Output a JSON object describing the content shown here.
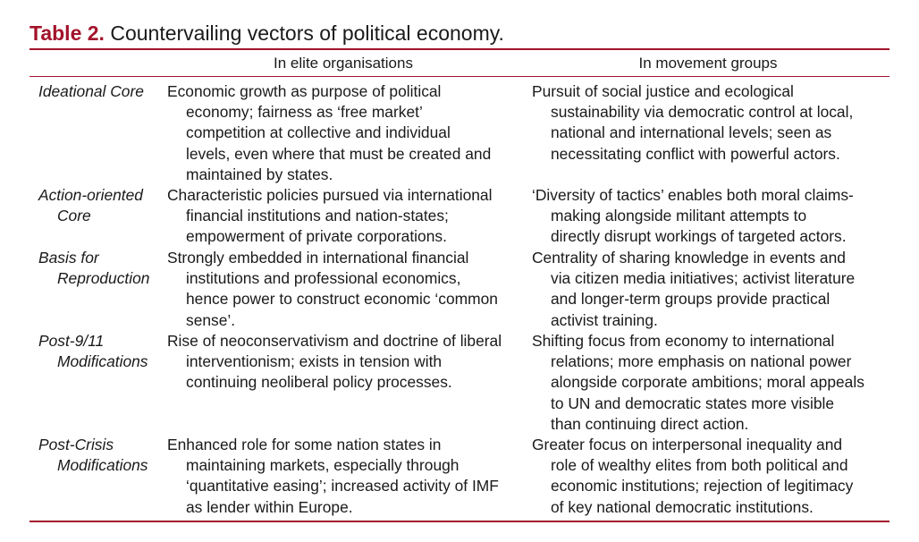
{
  "caption": {
    "label": "Table 2.",
    "title": "Countervailing vectors of political economy."
  },
  "columns": [
    "In elite organisations",
    "In movement groups"
  ],
  "rows": [
    {
      "label": [
        "Ideational Core"
      ],
      "elite": [
        "Economic growth as purpose of political",
        "economy; fairness as ‘free market’",
        "competition at collective and individual",
        "levels, even where that must be created and",
        "maintained by states."
      ],
      "movement": [
        "Pursuit of social justice and ecological",
        "sustainability via democratic control at local,",
        "national and international levels; seen as",
        "necessitating conflict with powerful actors."
      ]
    },
    {
      "label": [
        "Action-oriented",
        "Core"
      ],
      "elite": [
        "Characteristic policies pursued via international",
        "financial institutions and nation-states;",
        "empowerment of private corporations."
      ],
      "movement": [
        "‘Diversity of tactics’ enables both moral claims-",
        "making alongside militant attempts to",
        "directly disrupt workings of targeted actors."
      ]
    },
    {
      "label": [
        "Basis for",
        "Reproduction"
      ],
      "elite": [
        "Strongly embedded in international financial",
        "institutions and professional economics,",
        "hence power to construct economic ‘common",
        "sense’."
      ],
      "movement": [
        "Centrality of sharing knowledge in events and",
        "via citizen media initiatives; activist literature",
        "and longer-term groups provide practical",
        "activist training."
      ]
    },
    {
      "label": [
        "Post-9/11",
        "Modifications"
      ],
      "elite": [
        "Rise of neoconservativism and doctrine of liberal",
        "interventionism; exists in tension with",
        "continuing neoliberal policy processes."
      ],
      "movement": [
        "Shifting focus from economy to international",
        "relations; more emphasis on national power",
        "alongside corporate ambitions; moral appeals",
        "to UN and democratic states more visible",
        "than continuing direct action."
      ]
    },
    {
      "label": [
        "Post-Crisis",
        "Modifications"
      ],
      "elite": [
        "Enhanced role for some nation states in",
        "maintaining markets, especially through",
        "‘quantitative easing’; increased activity of IMF",
        "as lender within Europe."
      ],
      "movement": [
        "Greater focus on interpersonal inequality and",
        "role of wealthy elites from both political and",
        "economic institutions; rejection of legitimacy",
        "of key national democratic institutions."
      ]
    }
  ]
}
